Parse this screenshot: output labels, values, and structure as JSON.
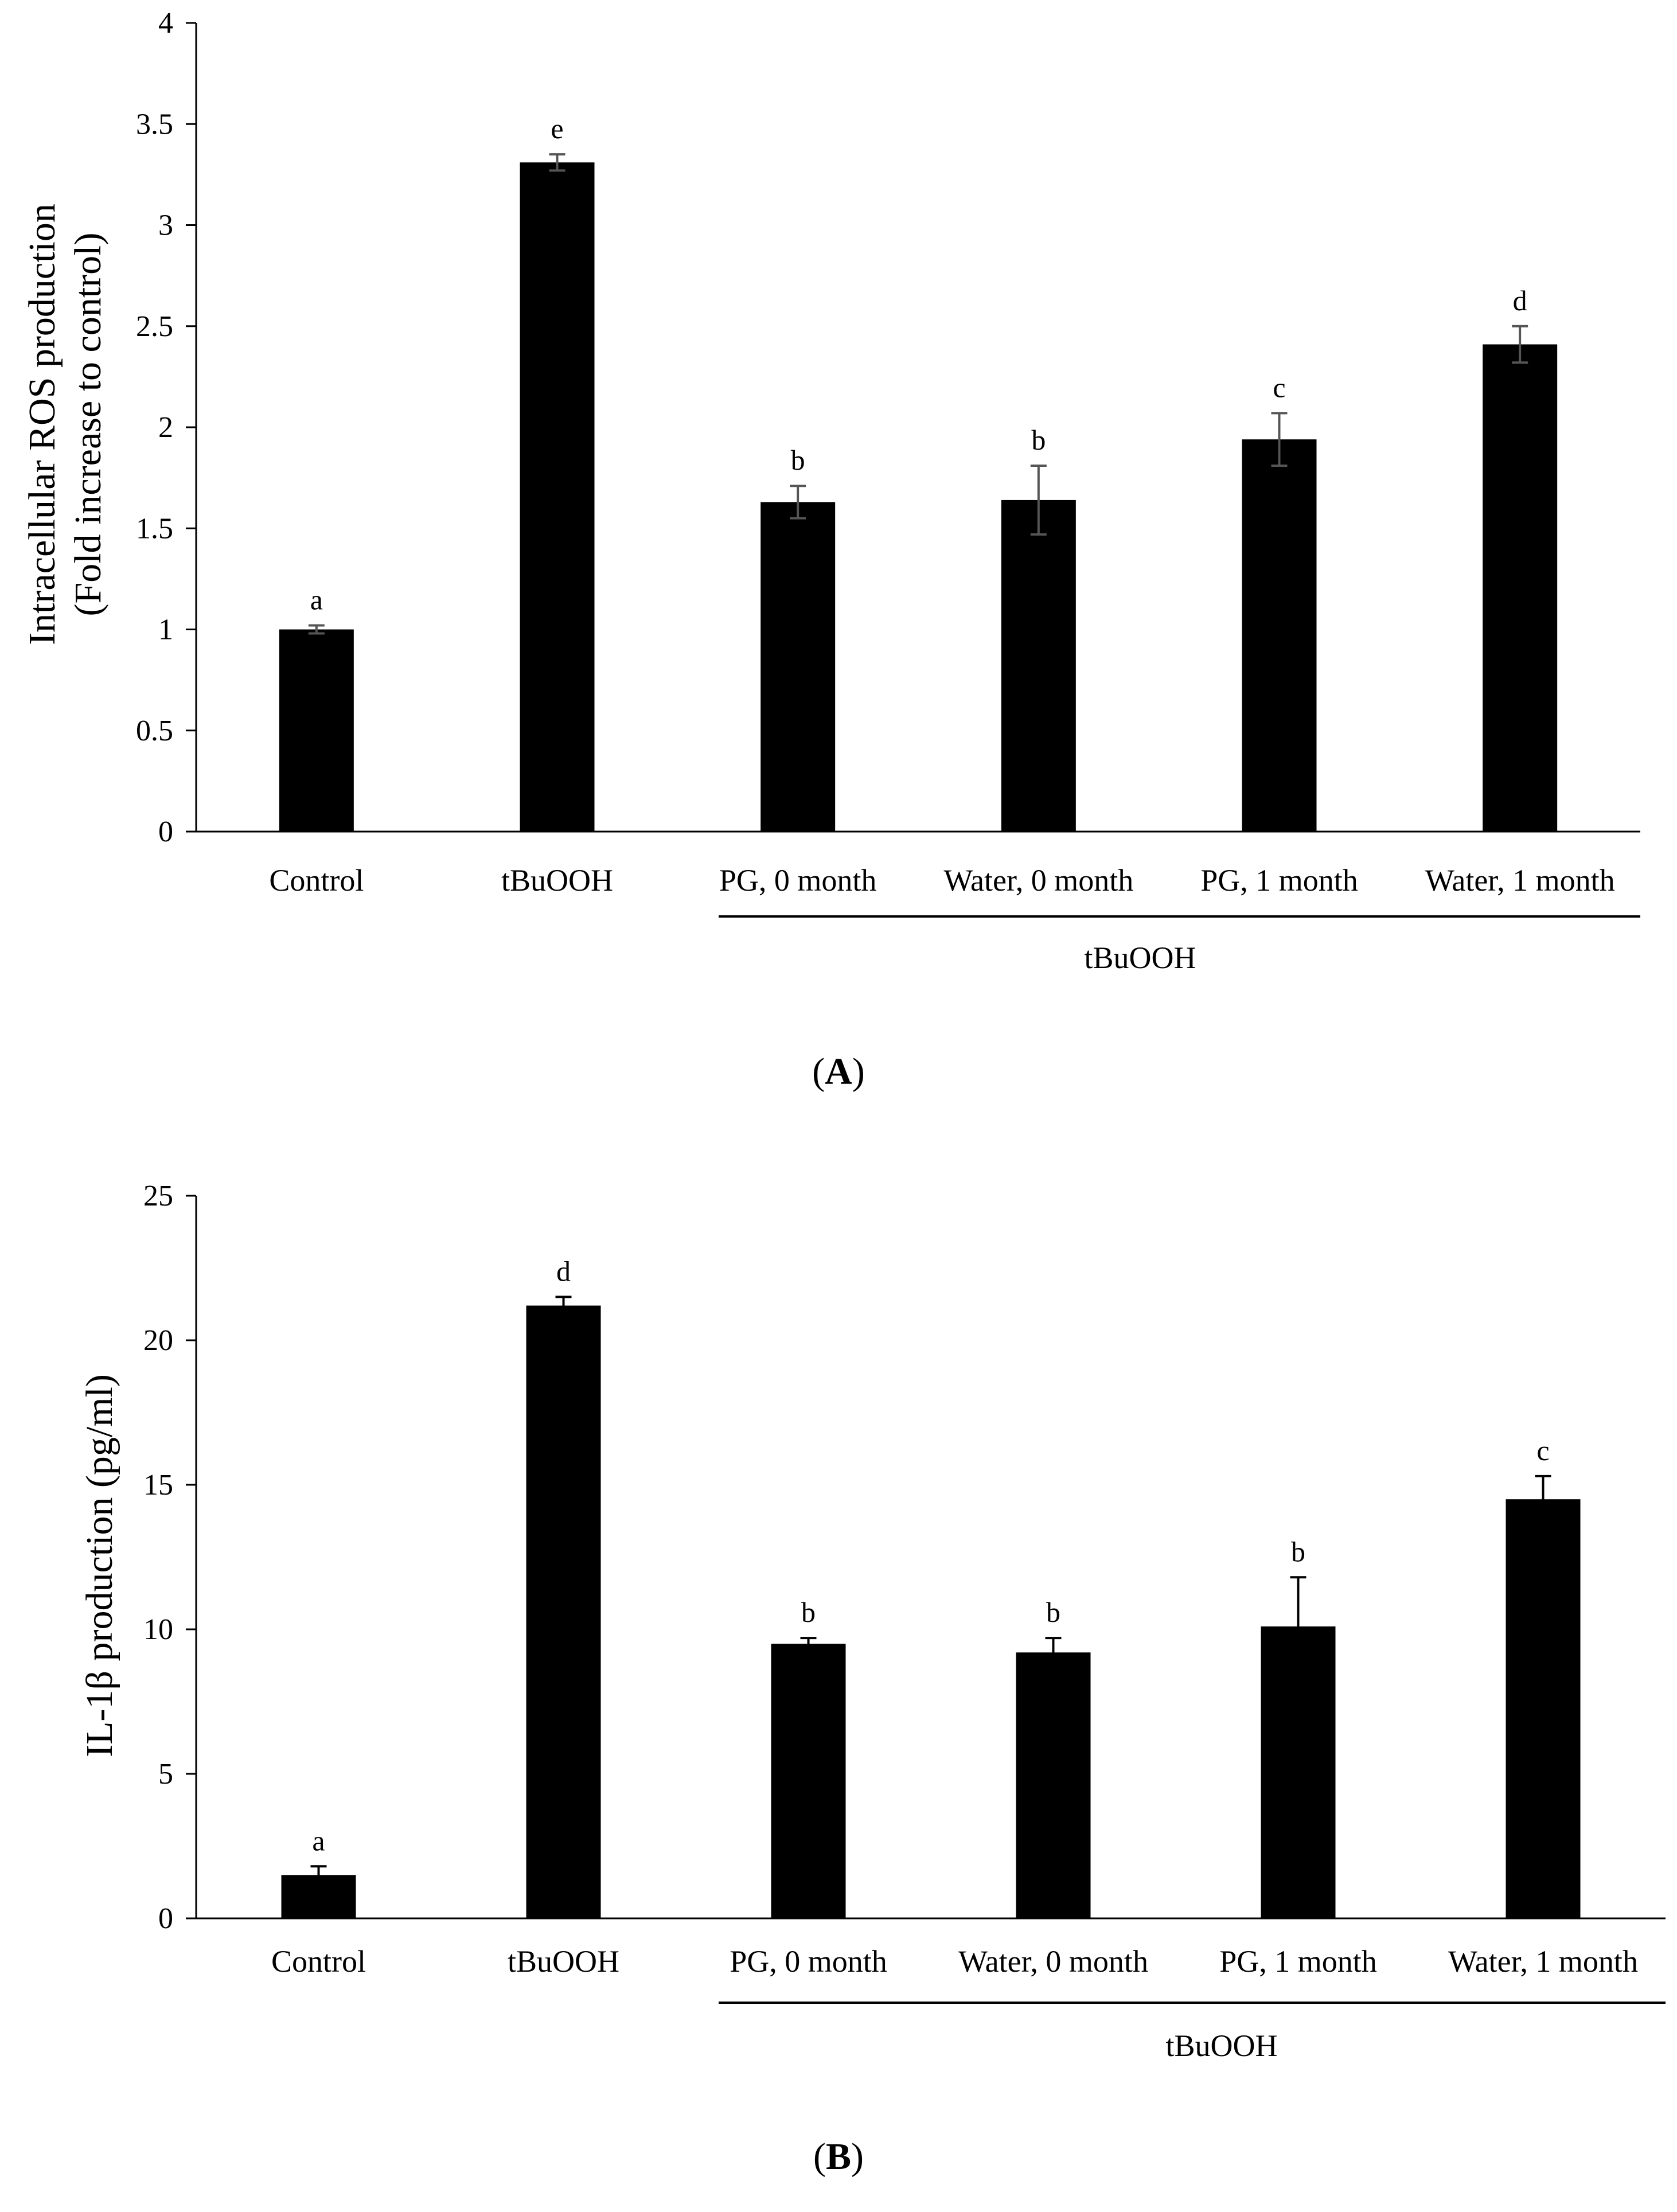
{
  "chart_data": [
    {
      "type": "bar",
      "panel_label": "A",
      "ylabel_lines": [
        "Intracellular  ROS production",
        "(Fold increase to control)"
      ],
      "xlabel": "",
      "ylim": [
        0,
        4
      ],
      "yticks": [
        0,
        0.5,
        1,
        1.5,
        2,
        2.5,
        3,
        3.5,
        4
      ],
      "categories": [
        "Control",
        "tBuOOH",
        "PG, 0 month",
        "Water, 0 month",
        "PG, 1 month",
        "Water, 1 month"
      ],
      "values": [
        1.0,
        3.31,
        1.63,
        1.64,
        1.94,
        2.41
      ],
      "errors": [
        0.02,
        0.04,
        0.08,
        0.17,
        0.13,
        0.09
      ],
      "significance": [
        "a",
        "e",
        "b",
        "b",
        "c",
        "d"
      ],
      "group_label": "tBuOOH",
      "group_span": [
        2,
        5
      ],
      "error_color": "#555555"
    },
    {
      "type": "bar",
      "panel_label": "B",
      "ylabel_lines": [
        "IL-1β production (pg/ml)"
      ],
      "xlabel": "",
      "ylim": [
        0,
        25
      ],
      "yticks": [
        0,
        5,
        10,
        15,
        20,
        25
      ],
      "categories": [
        "Control",
        "tBuOOH",
        "PG, 0 month",
        "Water, 0 month",
        "PG, 1 month",
        "Water, 1 month"
      ],
      "values": [
        1.5,
        21.2,
        9.5,
        9.2,
        10.1,
        14.5
      ],
      "errors": [
        0.3,
        0.3,
        0.2,
        0.5,
        1.7,
        0.8
      ],
      "significance": [
        "a",
        "d",
        "b",
        "b",
        "b",
        "c"
      ],
      "group_label": "tBuOOH",
      "group_span": [
        2,
        5
      ],
      "error_color": "#000000"
    }
  ]
}
